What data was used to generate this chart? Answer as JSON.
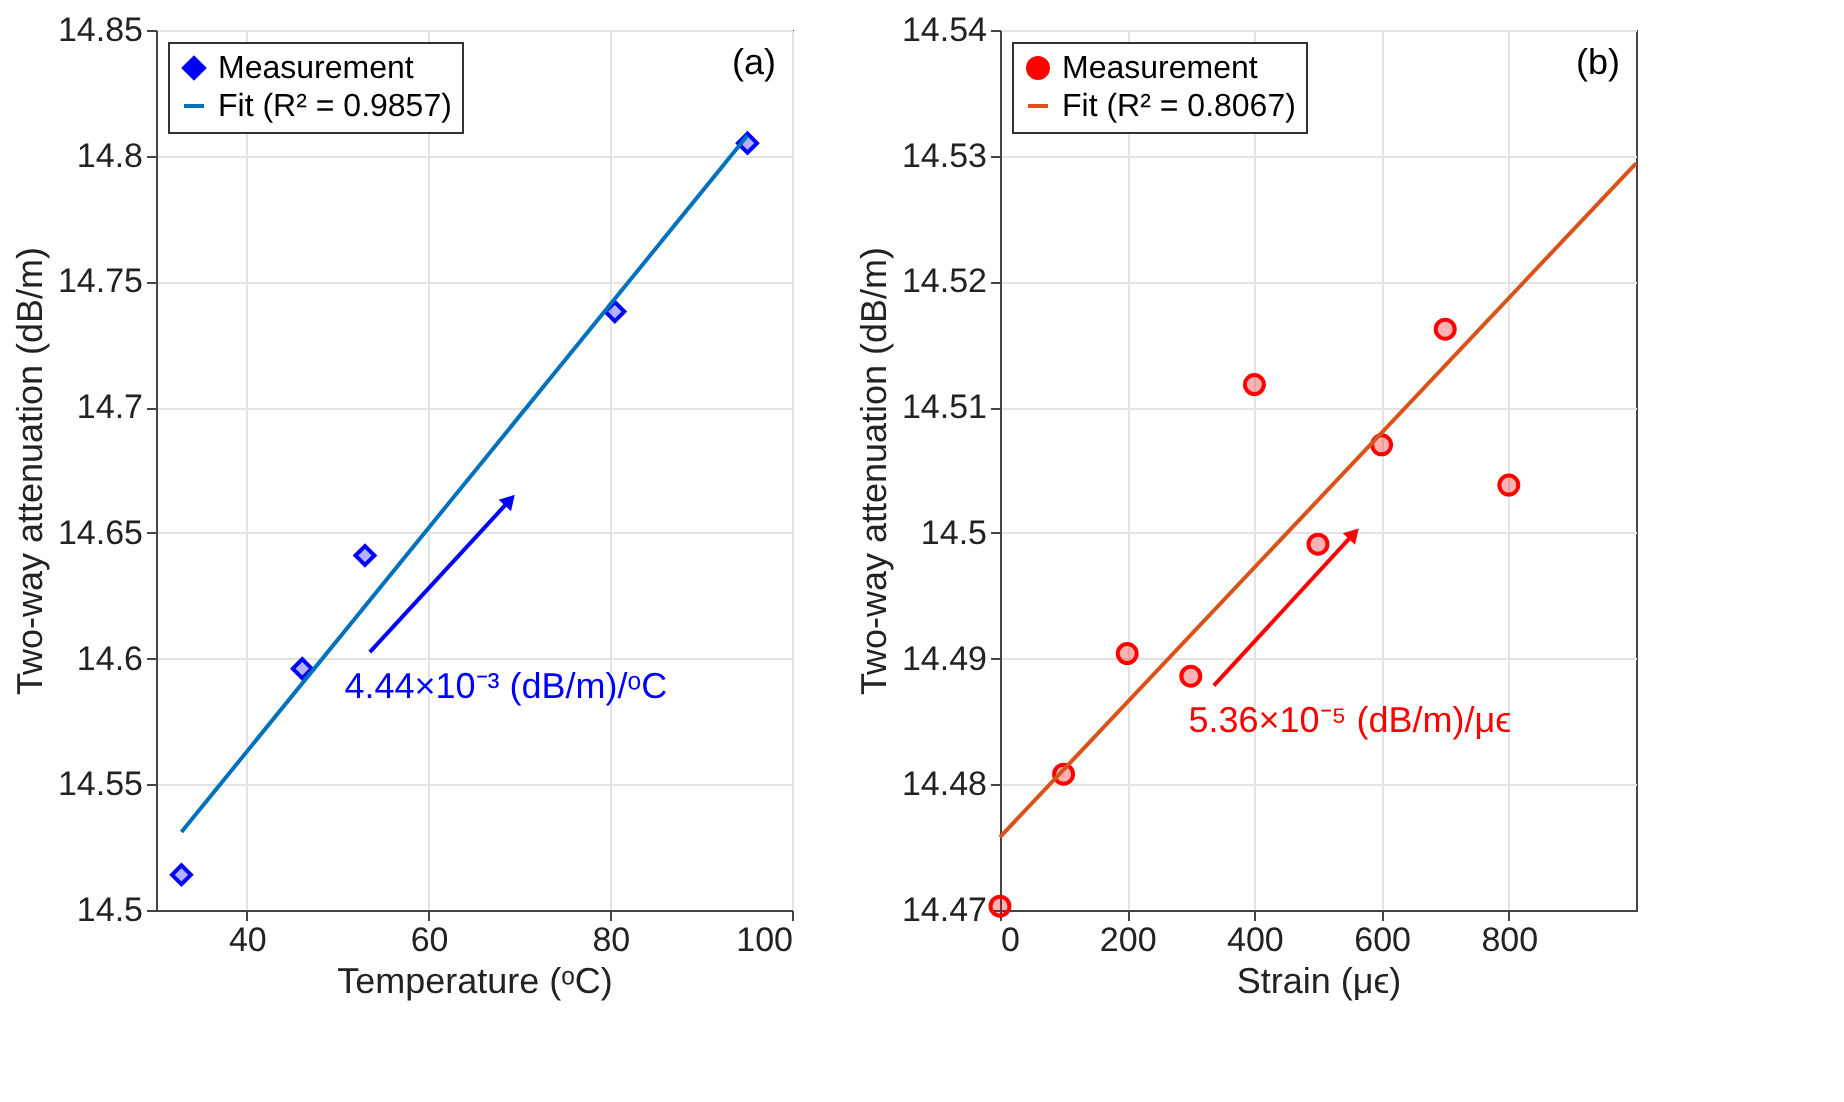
{
  "chart_data": [
    {
      "type": "scatter",
      "xlabel": "Temperature (ᵒC)",
      "ylabel": "Two-way attenuation (dB/m)",
      "xlim": [
        30,
        100
      ],
      "xticks": [
        40,
        60,
        80,
        100
      ],
      "ylim": [
        14.5,
        14.85
      ],
      "yticks": [
        14.5,
        14.55,
        14.6,
        14.65,
        14.7,
        14.75,
        14.8,
        14.85
      ],
      "grid": true,
      "legend": "top left",
      "annotations": [
        "(a)",
        "4.44×10⁻³ (dB/m)/ᵒC"
      ],
      "series": [
        {
          "name": "Measurement",
          "color": "#0000ff",
          "marker": "diamond",
          "x": [
            32.8,
            46.1,
            53.0,
            80.5,
            95.1
          ],
          "values": [
            14.514,
            14.596,
            14.641,
            14.738,
            14.805
          ]
        },
        {
          "name": "Fit (R² = 0.9857)",
          "type": "line",
          "color": "#0072bd",
          "x": [
            32.8,
            95.1
          ],
          "values": [
            14.531,
            14.808
          ]
        }
      ]
    },
    {
      "type": "scatter",
      "xlabel": "Strain (μϵ)",
      "ylabel": "Two-way attenuation (dB/m)",
      "xlim": [
        0,
        1000
      ],
      "xticks": [
        0,
        200,
        400,
        600,
        800
      ],
      "ylim": [
        14.47,
        14.54
      ],
      "yticks": [
        14.47,
        14.48,
        14.49,
        14.5,
        14.51,
        14.52,
        14.53,
        14.54
      ],
      "grid": true,
      "legend": "top left",
      "annotations": [
        "(b)",
        "5.36×10⁻⁵ (dB/m)/μϵ"
      ],
      "series": [
        {
          "name": "Measurement",
          "color": "#ff0000",
          "marker": "circle",
          "x": [
            0,
            100,
            200,
            300,
            400,
            500,
            600,
            700,
            800
          ],
          "values": [
            14.4703,
            14.4808,
            14.4904,
            14.4886,
            14.5118,
            14.4991,
            14.507,
            14.5162,
            14.5038
          ]
        },
        {
          "name": "Fit (R² = 0.8067)",
          "type": "line",
          "color": "#d95319",
          "x": [
            0,
            1000
          ],
          "values": [
            14.4758,
            14.5294
          ]
        }
      ]
    }
  ]
}
